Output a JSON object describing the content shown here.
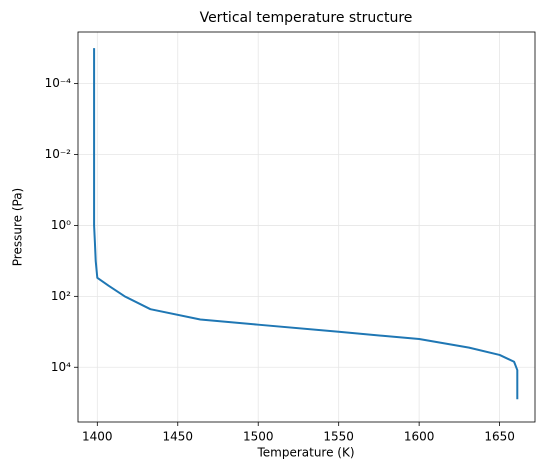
{
  "chart_data": {
    "type": "line",
    "title": "Vertical temperature structure",
    "x_label": "Temperature (K)",
    "y_label": "Pressure (Pa)",
    "y_scale": "log",
    "y_inverted": true,
    "grid": true,
    "xlim": [
      1388,
      1672
    ],
    "xticks": [
      1400,
      1450,
      1500,
      1550,
      1600,
      1650
    ],
    "ylim": [
      3.5e-06,
      350000
    ],
    "yticks": [
      {
        "value": 0.0001,
        "label": "10⁻⁴"
      },
      {
        "value": 0.01,
        "label": "10⁻²"
      },
      {
        "value": 1,
        "label": "10⁰"
      },
      {
        "value": 100,
        "label": "10²"
      },
      {
        "value": 10000,
        "label": "10⁴"
      }
    ],
    "series": [
      {
        "color": "#1f77b4",
        "x": [
          1398,
          1398,
          1398,
          1398,
          1398,
          1398,
          1398.5,
          1399,
          1400,
          1407,
          1417,
          1433,
          1464,
          1500,
          1550,
          1600,
          1631,
          1650,
          1659,
          1661,
          1661
        ],
        "values": [
          1e-05,
          0.0001,
          0.001,
          0.01,
          0.1,
          1,
          3,
          10,
          30,
          50,
          100,
          230,
          450,
          630,
          1000,
          1600,
          2800,
          4500,
          7000,
          12000,
          80000
        ]
      }
    ]
  }
}
